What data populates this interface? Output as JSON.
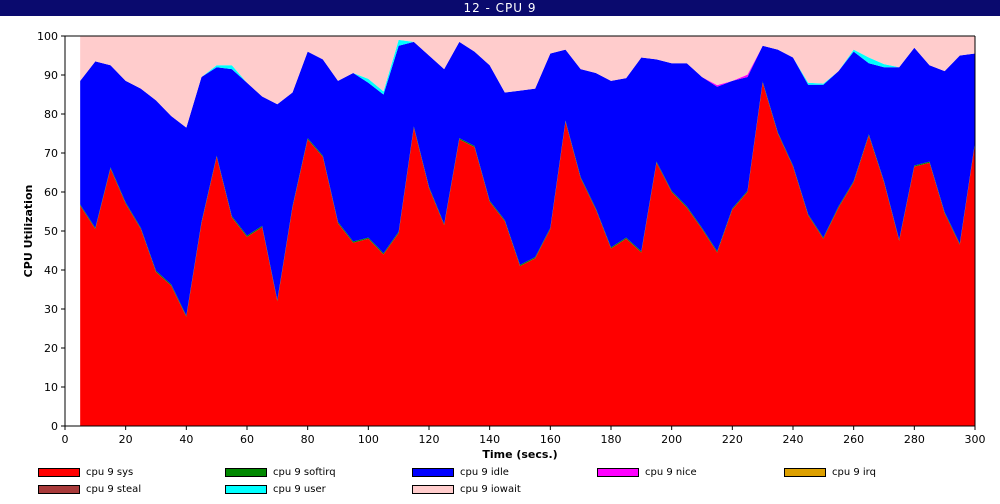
{
  "window": {
    "title": "12 - CPU 9"
  },
  "chart_data": {
    "type": "area",
    "stacked": true,
    "xlabel": "Time (secs.)",
    "ylabel": "CPU Utilization",
    "xlim": [
      0,
      300
    ],
    "ylim": [
      0,
      100
    ],
    "xticks": [
      0,
      20,
      40,
      60,
      80,
      100,
      120,
      140,
      160,
      180,
      200,
      220,
      240,
      260,
      280,
      300
    ],
    "yticks": [
      0,
      10,
      20,
      30,
      40,
      50,
      60,
      70,
      80,
      90,
      100
    ],
    "grid": false,
    "legend_position": "bottom",
    "x": [
      5,
      10,
      15,
      20,
      25,
      30,
      35,
      40,
      45,
      50,
      55,
      60,
      65,
      70,
      75,
      80,
      85,
      90,
      95,
      100,
      105,
      110,
      115,
      120,
      125,
      130,
      135,
      140,
      145,
      150,
      155,
      160,
      165,
      170,
      175,
      180,
      185,
      190,
      195,
      200,
      205,
      210,
      215,
      220,
      225,
      230,
      235,
      240,
      245,
      250,
      255,
      260,
      265,
      270,
      275,
      280,
      285,
      290,
      295,
      300
    ],
    "series": [
      {
        "name": "cpu 9 sys",
        "color": "#ff0000",
        "values": [
          56.5,
          50.5,
          66,
          57,
          50.5,
          39.5,
          36,
          28,
          52,
          69,
          53.5,
          48.5,
          51,
          32,
          56,
          73.5,
          69,
          52,
          47,
          48,
          44,
          49.5,
          76.5,
          61,
          51.5,
          73.5,
          71.5,
          57.5,
          52.5,
          41,
          43,
          50.5,
          78,
          63.5,
          55.5,
          45.5,
          48,
          44.5,
          67.5,
          60,
          56,
          50.5,
          44.5,
          55.5,
          60,
          88,
          75,
          66.5,
          54,
          48,
          56,
          62.5,
          74.5,
          62.5,
          47.5,
          66.5,
          67.5,
          54.5,
          46.5,
          72.5
        ]
      },
      {
        "name": "cpu 9 softirq",
        "color": "#008800",
        "values": [
          0.3,
          0.3,
          0.3,
          0.3,
          0.3,
          0.3,
          0.3,
          0.3,
          0.3,
          0.3,
          0.3,
          0.3,
          0.3,
          0.3,
          0.3,
          0.3,
          0.3,
          0.3,
          0.3,
          0.3,
          0.3,
          0.3,
          0.3,
          0.3,
          0.3,
          0.3,
          0.3,
          0.3,
          0.3,
          0.3,
          0.3,
          0.3,
          0.3,
          0.3,
          0.3,
          0.3,
          0.3,
          0.3,
          0.3,
          0.3,
          0.3,
          0.3,
          0.3,
          0.3,
          0.3,
          0.3,
          0.3,
          0.3,
          0.3,
          0.3,
          0.3,
          0.3,
          0.3,
          0.3,
          0.3,
          0.3,
          0.3,
          0.3,
          0.3,
          0.3
        ]
      },
      {
        "name": "cpu 9 idle",
        "color": "#0000ff",
        "values": [
          31.7,
          42.7,
          26.2,
          31.2,
          35.7,
          43.7,
          43.2,
          48.2,
          37.2,
          22.7,
          37.7,
          39.2,
          33.2,
          50.2,
          29.2,
          22.2,
          24.7,
          36.2,
          43.2,
          39.7,
          40.7,
          47.7,
          21.7,
          33.7,
          39.7,
          24.7,
          24.2,
          34.7,
          32.7,
          44.7,
          43.2,
          44.7,
          18.2,
          27.7,
          34.7,
          42.7,
          40.9,
          49.7,
          26.2,
          32.7,
          36.7,
          38.7,
          42.2,
          32.7,
          29.2,
          9.2,
          21.2,
          27.7,
          33.2,
          39.2,
          34.7,
          33.2,
          18.2,
          29.2,
          44.2,
          30.2,
          24.7,
          36.2,
          48.2,
          22.7
        ]
      },
      {
        "name": "cpu 9 nice",
        "color": "#ff00ff",
        "values": [
          0,
          0,
          0,
          0,
          0,
          0,
          0,
          0,
          0,
          0,
          0,
          0,
          0,
          0,
          0,
          0,
          0,
          0,
          0,
          0,
          0,
          0,
          0,
          0,
          0,
          0,
          0,
          0,
          0,
          0,
          0,
          0,
          0,
          0,
          0,
          0,
          0,
          0,
          0,
          0,
          0,
          0,
          0.4,
          0,
          0.6,
          0,
          0,
          0,
          0,
          0,
          0,
          0,
          0,
          0,
          0,
          0,
          0,
          0,
          0,
          0
        ]
      },
      {
        "name": "cpu 9 irq",
        "color": "#dda000",
        "values": [
          0,
          0,
          0,
          0,
          0,
          0,
          0,
          0,
          0,
          0,
          0,
          0,
          0,
          0,
          0,
          0,
          0,
          0,
          0,
          0,
          0,
          0,
          0,
          0,
          0,
          0,
          0,
          0,
          0,
          0,
          0,
          0,
          0,
          0,
          0,
          0,
          0,
          0,
          0,
          0,
          0,
          0,
          0,
          0,
          0,
          0,
          0,
          0,
          0,
          0,
          0,
          0,
          0,
          0,
          0,
          0,
          0,
          0,
          0,
          0
        ]
      },
      {
        "name": "cpu 9 steal",
        "color": "#a83a3a",
        "values": [
          0,
          0,
          0,
          0,
          0,
          0,
          0,
          0,
          0,
          0,
          0,
          0,
          0,
          0,
          0,
          0,
          0,
          0,
          0,
          0,
          0,
          0,
          0,
          0,
          0,
          0,
          0,
          0,
          0,
          0,
          0,
          0,
          0,
          0,
          0,
          0,
          0,
          0,
          0,
          0,
          0,
          0,
          0,
          0,
          0,
          0,
          0,
          0,
          0,
          0,
          0,
          0,
          0,
          0,
          0,
          0,
          0,
          0,
          0,
          0
        ]
      },
      {
        "name": "cpu 9 user",
        "color": "#00ffff",
        "values": [
          0,
          0,
          0,
          0,
          0,
          0,
          0,
          0,
          0,
          0.5,
          1,
          0,
          0,
          0,
          0,
          0,
          0,
          0,
          0,
          1,
          0.8,
          1.5,
          0,
          0,
          0,
          0,
          0,
          0,
          0,
          0,
          0,
          0,
          0,
          0,
          0,
          0,
          0,
          0,
          0,
          0,
          0,
          0,
          0,
          0,
          0,
          0,
          0,
          0,
          0.5,
          0.3,
          0,
          0.5,
          1.5,
          0.8,
          0,
          0,
          0,
          0,
          0,
          0
        ]
      },
      {
        "name": "cpu 9 iowait",
        "color": "#ffcccc",
        "values": [
          11.5,
          6.5,
          7.5,
          11.5,
          13.5,
          16.5,
          20.5,
          23.5,
          10.5,
          7.5,
          7.5,
          12,
          15.5,
          17.5,
          14.5,
          4,
          6,
          11.5,
          9.5,
          11,
          14.2,
          1,
          1.5,
          5,
          8.5,
          1.5,
          4,
          7.5,
          14.5,
          14,
          13.5,
          4.5,
          3.5,
          8.5,
          9.5,
          11.5,
          10.8,
          5.5,
          6,
          7,
          7,
          10.5,
          12.6,
          11.5,
          9.9,
          2.5,
          3.5,
          5.5,
          12,
          12.2,
          9,
          3.8,
          5.5,
          7.2,
          8,
          3,
          7.5,
          9,
          5,
          4.5
        ]
      }
    ]
  }
}
